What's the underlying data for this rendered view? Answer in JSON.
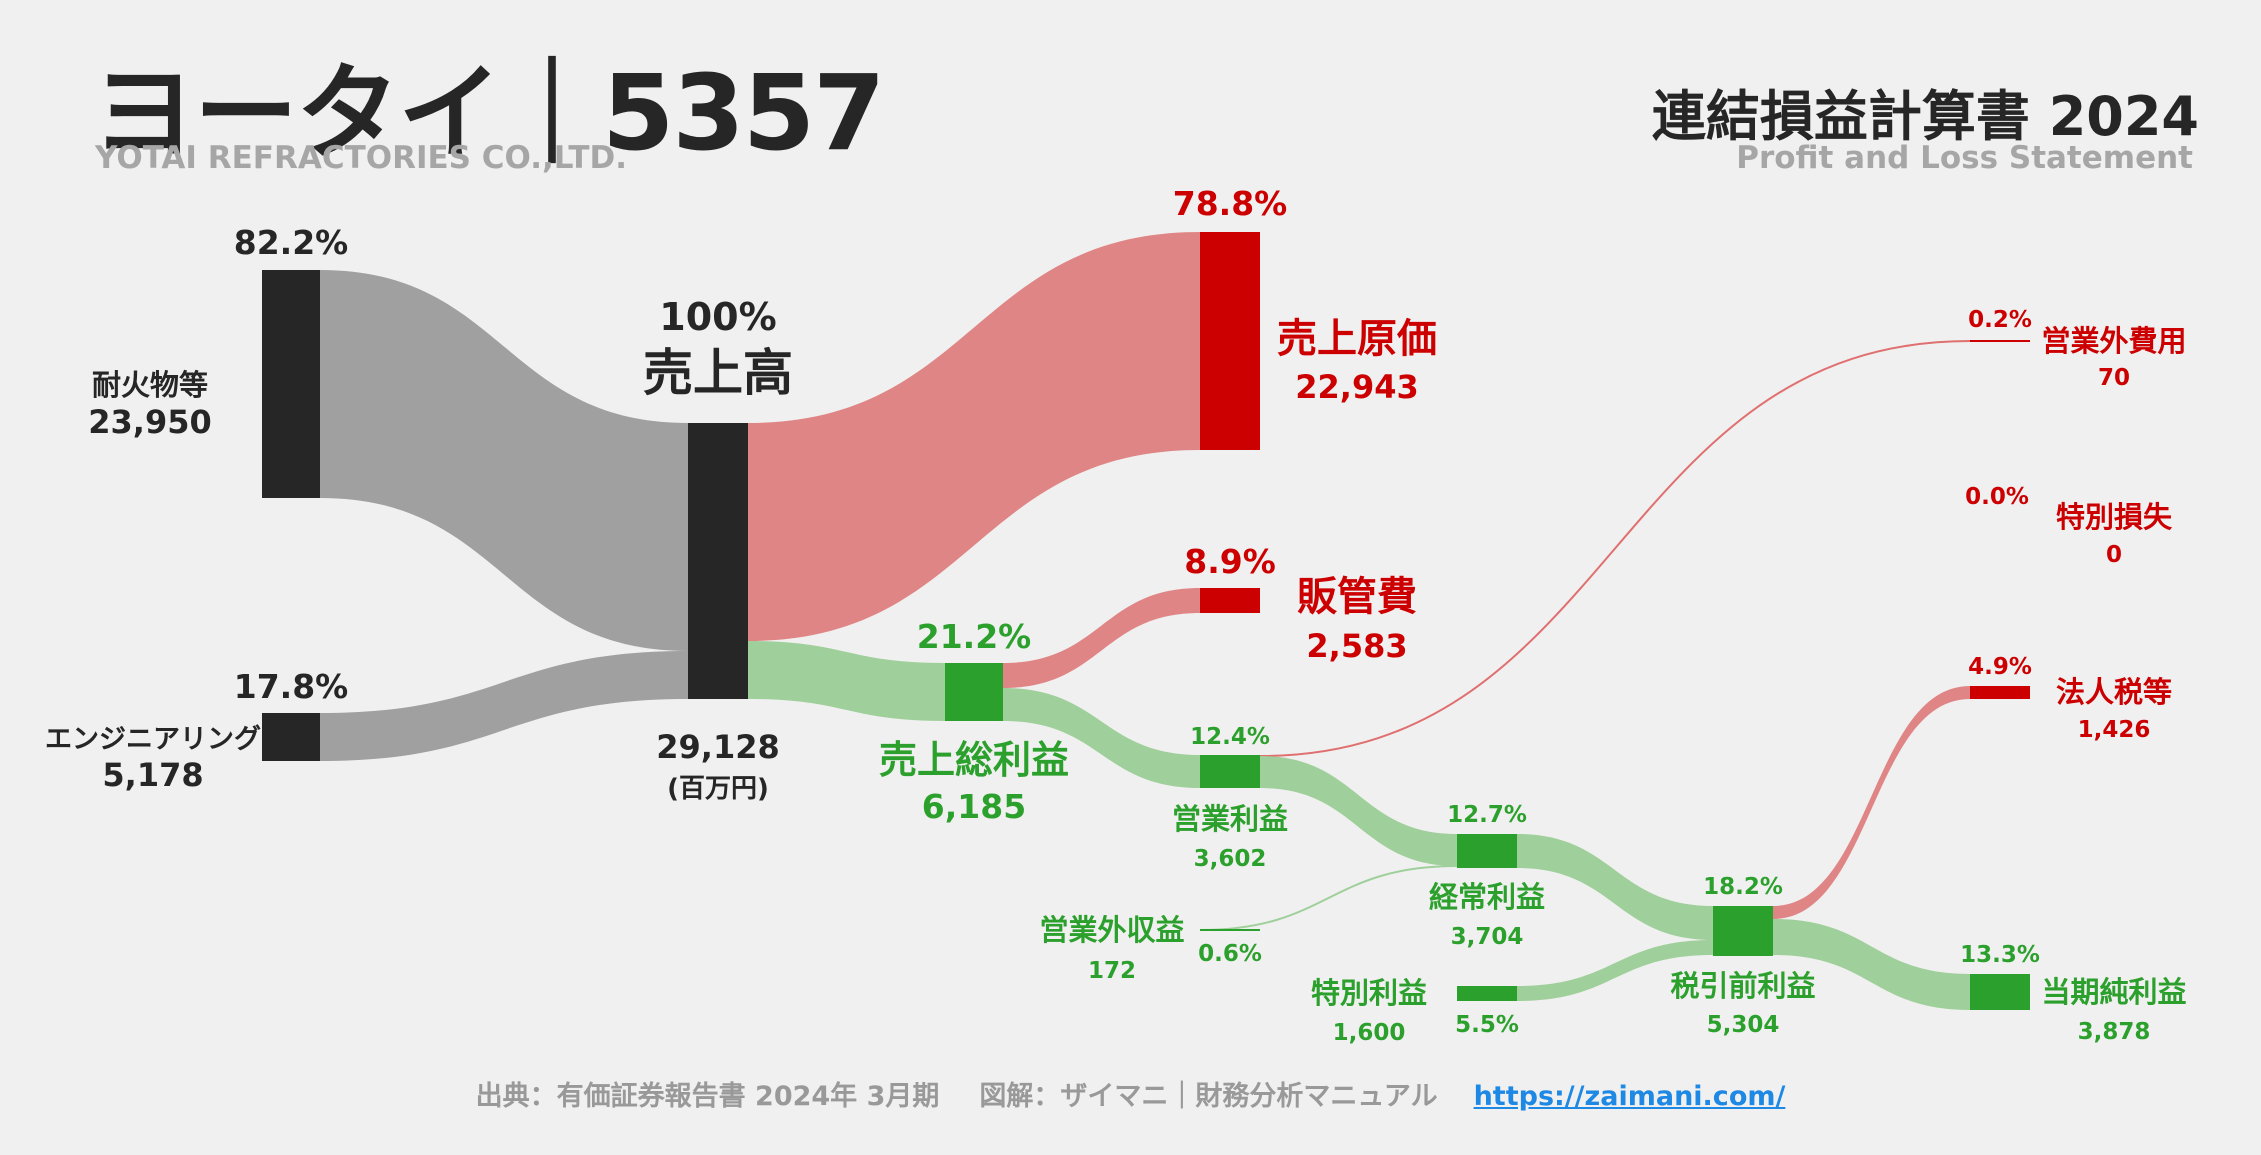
{
  "header": {
    "title": "ヨータイ｜5357",
    "subtitle": "YOTAI REFRACTORIES CO.,LTD.",
    "statement_title": "連結損益計算書 2024",
    "statement_subtitle": "Profit and Loss Statement"
  },
  "footer": {
    "source": "出典：有価証券報告書 2024年 3月期",
    "credit": "図解：ザイマニ｜財務分析マニュアル",
    "link": "https://zaimani.com/"
  },
  "colors": {
    "dark": "#262626",
    "grey_flow": "#a0a0a0",
    "red": "#cc0000",
    "red_flow": "#e08585",
    "green": "#2ca02c",
    "green_flow": "#9fcf9a"
  },
  "chart_data": {
    "type": "sankey",
    "unit": "(百万円)",
    "nodes": [
      {
        "id": "refractories",
        "label": "耐火物等",
        "value": "23,950",
        "pct": "82.2%"
      },
      {
        "id": "engineering",
        "label": "エンジニアリング",
        "value": "5,178",
        "pct": "17.8%"
      },
      {
        "id": "revenue",
        "label": "売上高",
        "value": "29,128",
        "pct": "100%"
      },
      {
        "id": "cogs",
        "label": "売上原価",
        "value": "22,943",
        "pct": "78.8%"
      },
      {
        "id": "sga",
        "label": "販管費",
        "value": "2,583",
        "pct": "8.9%"
      },
      {
        "id": "gross_profit",
        "label": "売上総利益",
        "value": "6,185",
        "pct": "21.2%"
      },
      {
        "id": "operating_profit",
        "label": "営業利益",
        "value": "3,602",
        "pct": "12.4%"
      },
      {
        "id": "non_op_income",
        "label": "営業外収益",
        "value": "172",
        "pct": "0.6%"
      },
      {
        "id": "non_op_expense",
        "label": "営業外費用",
        "value": "70",
        "pct": "0.2%"
      },
      {
        "id": "ordinary_profit",
        "label": "経常利益",
        "value": "3,704",
        "pct": "12.7%"
      },
      {
        "id": "extraordinary_income",
        "label": "特別利益",
        "value": "1,600",
        "pct": "5.5%"
      },
      {
        "id": "extraordinary_loss",
        "label": "特別損失",
        "value": "0",
        "pct": "0.0%"
      },
      {
        "id": "pretax_profit",
        "label": "税引前利益",
        "value": "5,304",
        "pct": "18.2%"
      },
      {
        "id": "income_tax",
        "label": "法人税等",
        "value": "1,426",
        "pct": "4.9%"
      },
      {
        "id": "net_profit",
        "label": "当期純利益",
        "value": "3,878",
        "pct": "13.3%"
      }
    ],
    "links": [
      {
        "source": "refractories",
        "target": "revenue",
        "value": 23950
      },
      {
        "source": "engineering",
        "target": "revenue",
        "value": 5178
      },
      {
        "source": "revenue",
        "target": "cogs",
        "value": 22943
      },
      {
        "source": "revenue",
        "target": "gross_profit",
        "value": 6185
      },
      {
        "source": "gross_profit",
        "target": "sga",
        "value": 2583
      },
      {
        "source": "gross_profit",
        "target": "operating_profit",
        "value": 3602
      },
      {
        "source": "operating_profit",
        "target": "non_op_expense",
        "value": 70
      },
      {
        "source": "operating_profit",
        "target": "ordinary_profit",
        "value": 3532
      },
      {
        "source": "non_op_income",
        "target": "ordinary_profit",
        "value": 172
      },
      {
        "source": "ordinary_profit",
        "target": "pretax_profit",
        "value": 3704
      },
      {
        "source": "extraordinary_income",
        "target": "pretax_profit",
        "value": 1600
      },
      {
        "source": "pretax_profit",
        "target": "income_tax",
        "value": 1426
      },
      {
        "source": "pretax_profit",
        "target": "net_profit",
        "value": 3878
      }
    ]
  }
}
